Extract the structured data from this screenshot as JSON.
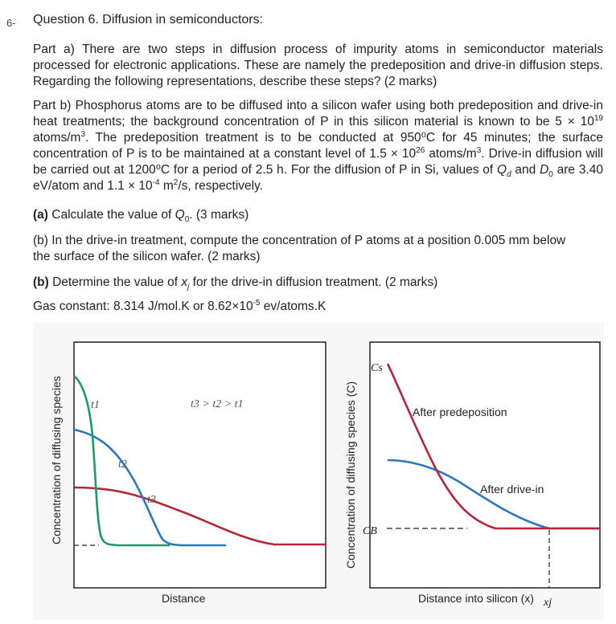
{
  "question": {
    "number": "6-",
    "title": "Question 6. Diffusion in semiconductors:"
  },
  "part_a": {
    "text": "Part a) There are two steps in diffusion process of impurity atoms in semiconductor materials processed for electronic applications. These are namely the predeposition and drive-in diffusion steps. Regarding the following representations, describe these steps? (2 marks)"
  },
  "part_b": {
    "intro": "Part b) Phosphorus atoms are to be diffused into a silicon wafer using both predeposition and drive-in heat treatments; the background concentration of P in this silicon material is known to be 5 × 10",
    "exp1": "19",
    "s2": " atoms/m",
    "exp2": "3",
    "s3": ". The predeposition treatment is to be conducted at 950⁰C for 45 minutes; the surface concentration of P is to be maintained at a constant level of 1.5 × 10",
    "exp3": "26",
    "s4": " atoms/m",
    "exp4": "3",
    "s5": ". Drive-in diffusion will be carried out at 1200⁰C for a period of 2.5 h. For the diffusion of P in Si, values of ",
    "qd": "Q",
    "qd_sub": "d",
    "s6": " and ",
    "d0": "D",
    "d0_sub": "0",
    "s7": " are 3.40 eV/atom and 1.1 × 10",
    "exp5": "-4",
    "s8": " m",
    "exp6": "2",
    "s9": "/s, respectively."
  },
  "sub_a": {
    "label": "(a)",
    "text_pre": " Calculate the value of ",
    "q": "Q",
    "q_sub": "0",
    "text_post": ". (3 marks)"
  },
  "sub_b": {
    "text": "(b) In the drive-in treatment, compute the concentration of P atoms at a position 0.005 mm below the surface of the silicon wafer. (2 marks)"
  },
  "sub_c": {
    "label": "(b)",
    "text_pre": " Determine the value of ",
    "x": "x",
    "x_sub": "j",
    "text_post": " for the drive-in diffusion treatment. (2 marks)"
  },
  "gas": {
    "pre": "Gas constant: 8.314 J/mol.K or 8.62×10",
    "exp": "-5",
    "post": " ev/atoms.K"
  },
  "figure": {
    "left": {
      "ylabel": "Concentration of diffusing species",
      "xlabel": "Distance",
      "t1": "t1",
      "t2": "t2",
      "t3": "t3",
      "relation": "t3 > t2 > t1"
    },
    "right": {
      "ylabel": "Concentration of diffusing species (C)",
      "xlabel": "Distance into silicon (x)",
      "cs": "Cs",
      "cb": "CB",
      "xj": "xj",
      "after_predep": "After predeposition",
      "after_drive": "After drive-in"
    },
    "colors": {
      "green": "#1d9a6c",
      "blue": "#2a78c0",
      "red": "#b5263a"
    }
  }
}
